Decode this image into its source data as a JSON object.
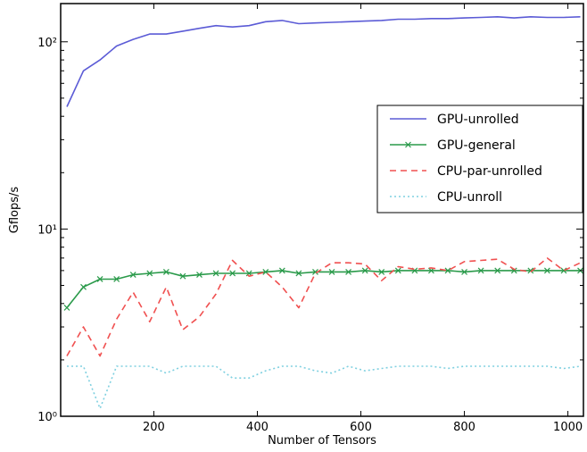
{
  "chart_data": {
    "type": "line",
    "xlabel": "Number of Tensors",
    "ylabel": "Gflops/s",
    "xscale": "linear",
    "yscale": "log",
    "xlim": [
      20,
      1030
    ],
    "ylim": [
      1,
      160
    ],
    "x_ticks": [
      200,
      400,
      600,
      800,
      1000
    ],
    "x_tick_labels": [
      "200",
      "400",
      "600",
      "800",
      "1000"
    ],
    "y_ticks": [
      1,
      10,
      100
    ],
    "y_tick_labels": [
      "10⁰",
      "10¹",
      "10²"
    ],
    "grid": false,
    "legend_position": "center-right",
    "series": [
      {
        "name": "GPU-unrolled",
        "color": "#5b5bd6",
        "style": "solid",
        "marker": "none",
        "x": [
          32,
          64,
          96,
          128,
          160,
          192,
          224,
          256,
          288,
          320,
          352,
          384,
          416,
          448,
          480,
          512,
          544,
          576,
          608,
          640,
          672,
          704,
          736,
          768,
          800,
          832,
          864,
          896,
          928,
          960,
          992,
          1024
        ],
        "y": [
          45,
          70,
          80,
          95,
          103,
          110,
          110,
          114,
          118,
          122,
          120,
          122,
          128,
          130,
          125,
          126,
          127,
          128,
          129,
          130,
          132,
          132,
          133,
          133,
          134,
          135,
          136,
          134,
          136,
          135,
          135,
          136
        ]
      },
      {
        "name": "GPU-general",
        "color": "#2a9a4a",
        "style": "solid",
        "marker": "x",
        "x": [
          32,
          64,
          96,
          128,
          160,
          192,
          224,
          256,
          288,
          320,
          352,
          384,
          416,
          448,
          480,
          512,
          544,
          576,
          608,
          640,
          672,
          704,
          736,
          768,
          800,
          832,
          864,
          896,
          928,
          960,
          992,
          1024
        ],
        "y": [
          3.8,
          4.9,
          5.4,
          5.4,
          5.7,
          5.8,
          5.9,
          5.6,
          5.7,
          5.8,
          5.8,
          5.8,
          5.9,
          6.0,
          5.8,
          5.9,
          5.9,
          5.9,
          6.0,
          5.9,
          6.0,
          6.0,
          6.0,
          6.0,
          5.9,
          6.0,
          6.0,
          6.0,
          6.0,
          6.0,
          6.0,
          6.0
        ]
      },
      {
        "name": "CPU-par-unrolled",
        "color": "#f05050",
        "style": "dashed",
        "marker": "none",
        "x": [
          32,
          64,
          96,
          128,
          160,
          192,
          224,
          256,
          288,
          320,
          352,
          384,
          416,
          448,
          480,
          512,
          544,
          576,
          608,
          640,
          672,
          704,
          736,
          768,
          800,
          832,
          864,
          896,
          928,
          960,
          992,
          1024
        ],
        "y": [
          2.1,
          3.0,
          2.1,
          3.3,
          4.6,
          3.2,
          4.9,
          2.9,
          3.4,
          4.5,
          6.8,
          5.6,
          5.9,
          4.9,
          3.8,
          5.8,
          6.6,
          6.6,
          6.5,
          5.3,
          6.3,
          6.1,
          6.2,
          6.0,
          6.7,
          6.8,
          6.9,
          6.1,
          5.9,
          7.0,
          6.0,
          6.6
        ]
      },
      {
        "name": "CPU-unroll",
        "color": "#7fd0e0",
        "style": "dotted",
        "marker": "none",
        "x": [
          32,
          64,
          96,
          128,
          160,
          192,
          224,
          256,
          288,
          320,
          352,
          384,
          416,
          448,
          480,
          512,
          544,
          576,
          608,
          640,
          672,
          704,
          736,
          768,
          800,
          832,
          864,
          896,
          928,
          960,
          992,
          1024
        ],
        "y": [
          1.85,
          1.85,
          1.1,
          1.85,
          1.85,
          1.85,
          1.7,
          1.85,
          1.85,
          1.85,
          1.6,
          1.6,
          1.75,
          1.85,
          1.85,
          1.75,
          1.7,
          1.85,
          1.75,
          1.8,
          1.85,
          1.85,
          1.85,
          1.8,
          1.85,
          1.85,
          1.85,
          1.85,
          1.85,
          1.85,
          1.8,
          1.85
        ]
      }
    ]
  }
}
